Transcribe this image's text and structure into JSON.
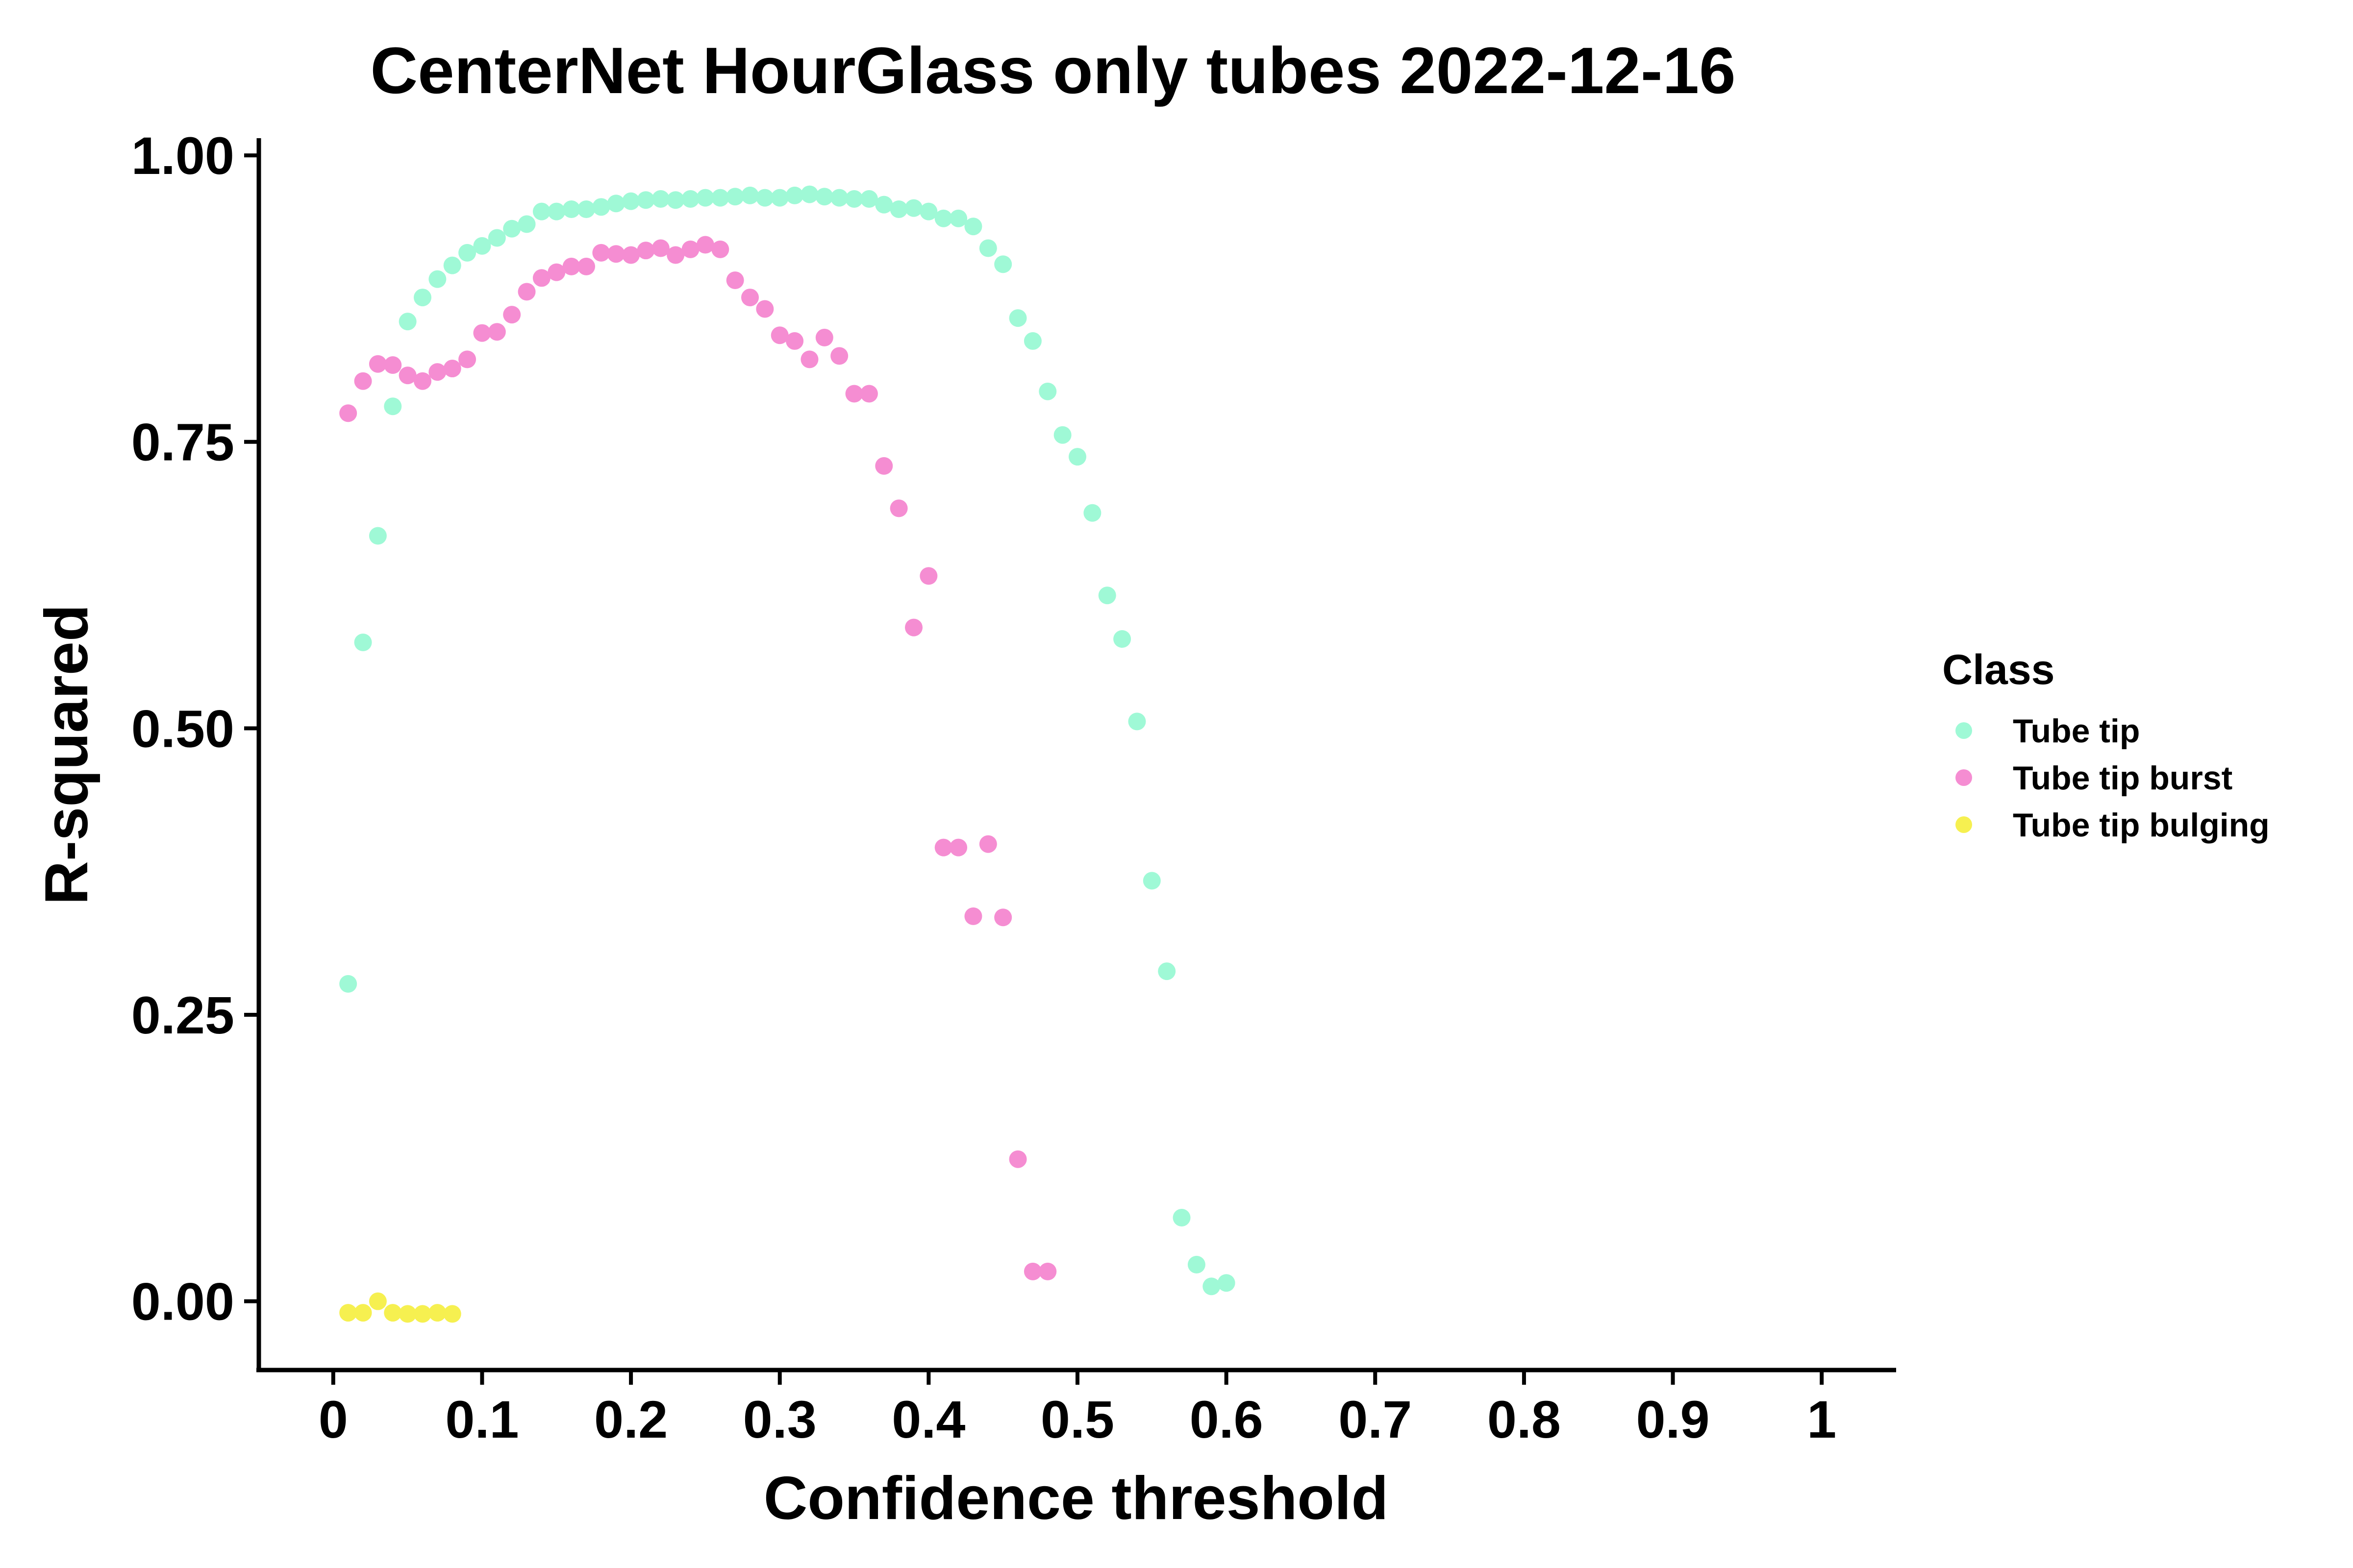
{
  "chart_data": {
    "type": "scatter",
    "title": "CenterNet HourGlass only tubes 2022-12-16",
    "xlabel": "Confidence threshold",
    "ylabel": "R-squared",
    "xlim": [
      -0.05,
      1.05
    ],
    "ylim": [
      -0.06,
      1.015
    ],
    "x_ticks": [
      0,
      0.1,
      0.2,
      0.3,
      0.4,
      0.5,
      0.6,
      0.7,
      0.8,
      0.9,
      1
    ],
    "x_tick_labels": [
      "0",
      "0.1",
      "0.2",
      "0.3",
      "0.4",
      "0.5",
      "0.6",
      "0.7",
      "0.8",
      "0.9",
      "1"
    ],
    "y_ticks": [
      0,
      0.25,
      0.5,
      0.75,
      1
    ],
    "y_tick_labels": [
      "0.00",
      "0.25",
      "0.50",
      "0.75",
      "1.00"
    ],
    "grid": false,
    "legend": {
      "title": "Class",
      "placement": "right"
    },
    "series": [
      {
        "name": "Tube tip",
        "color": "#9ff9d6",
        "x": [
          0.01,
          0.02,
          0.03,
          0.04,
          0.05,
          0.06,
          0.07,
          0.08,
          0.09,
          0.1,
          0.11,
          0.12,
          0.13,
          0.14,
          0.15,
          0.16,
          0.17,
          0.18,
          0.19,
          0.2,
          0.21,
          0.22,
          0.23,
          0.24,
          0.25,
          0.26,
          0.27,
          0.28,
          0.29,
          0.3,
          0.31,
          0.32,
          0.33,
          0.34,
          0.35,
          0.36,
          0.37,
          0.38,
          0.39,
          0.4,
          0.41,
          0.42,
          0.43,
          0.44,
          0.45,
          0.46,
          0.47,
          0.48,
          0.49,
          0.5,
          0.51,
          0.52,
          0.53,
          0.54,
          0.55,
          0.56,
          0.57,
          0.58,
          0.59,
          0.6
        ],
        "y": [
          0.277,
          0.575,
          0.668,
          0.781,
          0.855,
          0.876,
          0.892,
          0.904,
          0.915,
          0.921,
          0.928,
          0.936,
          0.94,
          0.951,
          0.951,
          0.953,
          0.953,
          0.955,
          0.958,
          0.96,
          0.961,
          0.962,
          0.961,
          0.962,
          0.963,
          0.963,
          0.964,
          0.965,
          0.963,
          0.963,
          0.965,
          0.966,
          0.964,
          0.963,
          0.962,
          0.962,
          0.957,
          0.953,
          0.954,
          0.951,
          0.945,
          0.945,
          0.938,
          0.919,
          0.905,
          0.858,
          0.838,
          0.794,
          0.756,
          0.737,
          0.688,
          0.616,
          0.578,
          0.506,
          0.367,
          0.288,
          0.073,
          0.032,
          0.013,
          0.016
        ]
      },
      {
        "name": "Tube tip burst",
        "color": "#f58dd2",
        "x": [
          0.01,
          0.02,
          0.03,
          0.04,
          0.05,
          0.06,
          0.07,
          0.08,
          0.09,
          0.1,
          0.11,
          0.12,
          0.13,
          0.14,
          0.15,
          0.16,
          0.17,
          0.18,
          0.19,
          0.2,
          0.21,
          0.22,
          0.23,
          0.24,
          0.25,
          0.26,
          0.27,
          0.28,
          0.29,
          0.3,
          0.31,
          0.32,
          0.33,
          0.34,
          0.35,
          0.36,
          0.37,
          0.38,
          0.39,
          0.4,
          0.41,
          0.42,
          0.43,
          0.44,
          0.45,
          0.46,
          0.47,
          0.48
        ],
        "y": [
          0.775,
          0.803,
          0.818,
          0.817,
          0.808,
          0.803,
          0.811,
          0.814,
          0.822,
          0.845,
          0.846,
          0.861,
          0.881,
          0.893,
          0.898,
          0.903,
          0.903,
          0.915,
          0.914,
          0.913,
          0.917,
          0.919,
          0.913,
          0.918,
          0.922,
          0.918,
          0.891,
          0.876,
          0.866,
          0.843,
          0.838,
          0.822,
          0.841,
          0.825,
          0.792,
          0.792,
          0.729,
          0.692,
          0.588,
          0.633,
          0.396,
          0.396,
          0.336,
          0.399,
          0.335,
          0.124,
          0.026,
          0.026
        ]
      },
      {
        "name": "Tube tip bulging",
        "color": "#f6f050",
        "x": [
          0.01,
          0.02,
          0.03,
          0.04,
          0.05,
          0.06,
          0.07,
          0.08
        ],
        "y": [
          -0.01,
          -0.01,
          0.0,
          -0.01,
          -0.011,
          -0.011,
          -0.01,
          -0.011
        ]
      }
    ]
  }
}
